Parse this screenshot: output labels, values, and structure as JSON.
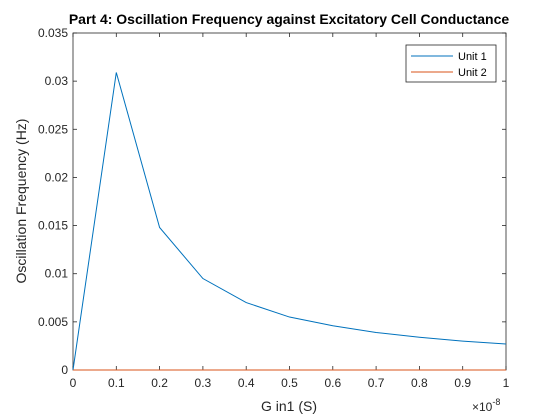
{
  "chart_data": {
    "type": "line",
    "title": "Part 4: Oscillation Frequency against Excitatory Cell Conductance",
    "xlabel": "G in1 (S)",
    "ylabel": "Oscillation Frequency (Hz)",
    "x_exponent_label": "×10",
    "x_exponent_power": "-8",
    "xlim": [
      0,
      1
    ],
    "ylim": [
      0,
      0.035
    ],
    "xticks": [
      0,
      0.1,
      0.2,
      0.3,
      0.4,
      0.5,
      0.6,
      0.7,
      0.8,
      0.9,
      1
    ],
    "xtick_labels": [
      "0",
      "0.1",
      "0.2",
      "0.3",
      "0.4",
      "0.5",
      "0.6",
      "0.7",
      "0.8",
      "0.9",
      "1"
    ],
    "yticks": [
      0,
      0.005,
      0.01,
      0.015,
      0.02,
      0.025,
      0.03,
      0.035
    ],
    "ytick_labels": [
      "0",
      "0.005",
      "0.01",
      "0.015",
      "0.02",
      "0.025",
      "0.03",
      "0.035"
    ],
    "grid": false,
    "legend_position": "top-right",
    "x": [
      0,
      0.1,
      0.2,
      0.3,
      0.4,
      0.5,
      0.6,
      0.7,
      0.8,
      0.9,
      1
    ],
    "series": [
      {
        "name": "Unit 1",
        "color": "#0072BD",
        "values": [
          0,
          0.0309,
          0.0148,
          0.0095,
          0.007,
          0.0055,
          0.0046,
          0.0039,
          0.0034,
          0.003,
          0.0027
        ]
      },
      {
        "name": "Unit 2",
        "color": "#D95319",
        "values": [
          0,
          0,
          0,
          0,
          0,
          0,
          0,
          0,
          0,
          0,
          0
        ]
      }
    ]
  }
}
